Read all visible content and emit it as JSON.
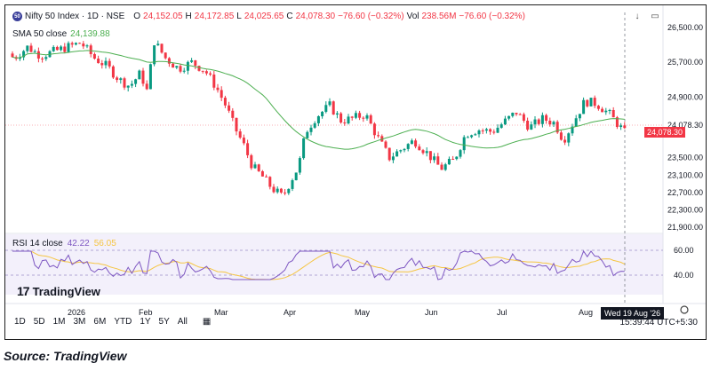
{
  "header": {
    "symbol": "Nifty 50 Index · 1D · NSE",
    "logo_text": "50",
    "open_k": "O",
    "open_v": "24,152.05",
    "high_k": "H",
    "high_v": "24,172.85",
    "low_k": "L",
    "low_v": "24,025.65",
    "close_k": "C",
    "close_v": "24,078.30",
    "change": "−76.60 (−0.32%)",
    "vol_k": "Vol",
    "vol_v": "238.56M",
    "change2": "−76.60 (−0.32%)"
  },
  "sma": {
    "label": "SMA 50 close",
    "value": "24,139.88",
    "color": "#4caf50"
  },
  "rsi": {
    "label": "RSI 14 close",
    "value1": "42.22",
    "value2": "56.05",
    "color": "#7e57c2"
  },
  "price_axis": [
    "26,500.00",
    "25,700.00",
    "24,900.00",
    "24,078.30",
    "23,500.00",
    "23,100.00",
    "22,700.00",
    "22,300.00",
    "21,900.00"
  ],
  "rsi_axis": [
    "60.00",
    "40.00"
  ],
  "time_axis": [
    "2026",
    "Feb",
    "Mar",
    "Apr",
    "May",
    "Jun",
    "Jul",
    "Aug"
  ],
  "date_tag": "Wed 19 Aug '26",
  "last_price_tag": "24,078.30",
  "timeframes": [
    "1D",
    "5D",
    "1M",
    "3M",
    "6M",
    "YTD",
    "1Y",
    "5Y",
    "All"
  ],
  "clock": "15:39:44 UTC+5:30",
  "brand": "TradingView",
  "source": "Source: TradingView",
  "colors": {
    "up": "#089981",
    "down": "#f23645",
    "sma": "#4caf50",
    "rsi": "#7e57c2",
    "rsi_ma": "#f5c542"
  }
}
